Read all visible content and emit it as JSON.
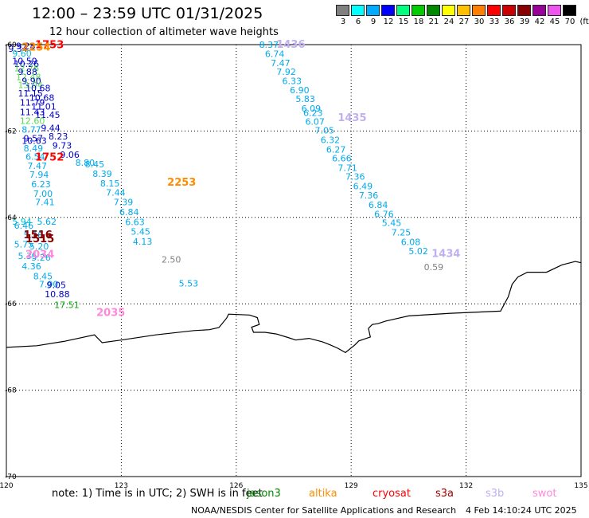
{
  "header": {
    "title": "12:00 – 23:59 UTC 01/31/2025",
    "subtitle": "12 hour collection of altimeter wave heights"
  },
  "colorbar": {
    "unit": "(ft)",
    "ticks": [
      "3",
      "6",
      "9",
      "12",
      "15",
      "18",
      "21",
      "24",
      "27",
      "30",
      "33",
      "36",
      "39",
      "42",
      "45",
      "70"
    ],
    "colors": [
      "#808080",
      "#00ffff",
      "#00aaff",
      "#0000ff",
      "#00ff7f",
      "#00cc00",
      "#008800",
      "#ffff00",
      "#ffc000",
      "#ff8000",
      "#ff0000",
      "#cc0000",
      "#880000",
      "#990099",
      "#ee55ee",
      "#000000"
    ]
  },
  "map": {
    "lon_range": [
      120,
      135
    ],
    "lat_range": [
      -60,
      -70
    ],
    "lon_labels": [
      "120",
      "123",
      "126",
      "129",
      "132",
      "135"
    ],
    "lat_labels": [
      "-60",
      "-62",
      "-64",
      "-66",
      "-68",
      "-70"
    ],
    "grid": "dotted"
  },
  "passes": [
    {
      "time": "1753",
      "color": "#ff0000",
      "lon": 120.75,
      "lat": -60.08
    },
    {
      "time": "2254",
      "color": "#ff8c00",
      "lon": 120.4,
      "lat": -60.14
    },
    {
      "time": "1752",
      "color": "#ff0000",
      "lon": 120.75,
      "lat": -62.68
    },
    {
      "time": "2253",
      "color": "#ff8c00",
      "lon": 124.2,
      "lat": -63.27
    },
    {
      "time": "1516",
      "color": "#880000",
      "lon": 120.45,
      "lat": -64.48
    },
    {
      "time": "1515",
      "color": "#880000",
      "lon": 120.5,
      "lat": -64.58
    },
    {
      "time": "2034",
      "color": "#ff88dd",
      "lon": 120.5,
      "lat": -64.94
    },
    {
      "time": "2035",
      "color": "#ff88dd",
      "lon": 122.35,
      "lat": -66.28
    },
    {
      "time": "1436",
      "color": "#c0b0f0",
      "lon": 127.05,
      "lat": -60.07
    },
    {
      "time": "1435",
      "color": "#c0b0f0",
      "lon": 128.65,
      "lat": -61.77
    },
    {
      "time": "1434",
      "color": "#c0b0f0",
      "lon": 131.1,
      "lat": -64.92
    }
  ],
  "values": [
    {
      "v": "9.28",
      "c": "#0000cc",
      "lon": 120.25,
      "lat": -60.1
    },
    {
      "v": "9.34",
      "c": "#0000cc",
      "lon": 120.05,
      "lat": -60.17
    },
    {
      "v": "9.60",
      "c": "#00c0d0",
      "lon": 120.15,
      "lat": -60.28
    },
    {
      "v": "10.59",
      "c": "#0000cc",
      "lon": 120.15,
      "lat": -60.45
    },
    {
      "v": "10.26",
      "c": "#0000cc",
      "lon": 120.2,
      "lat": -60.52
    },
    {
      "v": "12.76",
      "c": "#55dd55",
      "lon": 120.2,
      "lat": -60.62
    },
    {
      "v": "9.88",
      "c": "#0000cc",
      "lon": 120.3,
      "lat": -60.7
    },
    {
      "v": "12.48",
      "c": "#55dd55",
      "lon": 120.25,
      "lat": -60.82
    },
    {
      "v": "9.90",
      "c": "#0000cc",
      "lon": 120.4,
      "lat": -60.91
    },
    {
      "v": "13.04",
      "c": "#55dd55",
      "lon": 120.3,
      "lat": -61.01
    },
    {
      "v": "10.68",
      "c": "#0000cc",
      "lon": 120.5,
      "lat": -61.08
    },
    {
      "v": "11.15",
      "c": "#0000cc",
      "lon": 120.3,
      "lat": -61.2
    },
    {
      "v": "10.68",
      "c": "#0000cc",
      "lon": 120.6,
      "lat": -61.3
    },
    {
      "v": "11.79",
      "c": "#0000cc",
      "lon": 120.35,
      "lat": -61.41
    },
    {
      "v": "11.01",
      "c": "#0000cc",
      "lon": 120.65,
      "lat": -61.5
    },
    {
      "v": "11.43",
      "c": "#0000cc",
      "lon": 120.35,
      "lat": -61.63
    },
    {
      "v": "11.45",
      "c": "#0000cc",
      "lon": 120.75,
      "lat": -61.7
    },
    {
      "v": "12.60",
      "c": "#55dd55",
      "lon": 120.35,
      "lat": -61.84
    },
    {
      "v": "9.44",
      "c": "#0000cc",
      "lon": 120.9,
      "lat": -62.0
    },
    {
      "v": "8.77",
      "c": "#00aaee",
      "lon": 120.4,
      "lat": -62.04
    },
    {
      "v": "8.23",
      "c": "#0000cc",
      "lon": 121.1,
      "lat": -62.2
    },
    {
      "v": "9.57",
      "c": "#0000cc",
      "lon": 120.45,
      "lat": -62.24
    },
    {
      "v": "10.63",
      "c": "#0000cc",
      "lon": 120.4,
      "lat": -62.3
    },
    {
      "v": "9.73",
      "c": "#0000cc",
      "lon": 121.2,
      "lat": -62.41
    },
    {
      "v": "8.49",
      "c": "#00aaee",
      "lon": 120.45,
      "lat": -62.47
    },
    {
      "v": "9.06",
      "c": "#0000cc",
      "lon": 121.4,
      "lat": -62.62
    },
    {
      "v": "6.54",
      "c": "#00aaee",
      "lon": 120.5,
      "lat": -62.67
    },
    {
      "v": "8.80",
      "c": "#00aaee",
      "lon": 121.8,
      "lat": -62.8
    },
    {
      "v": "8.45",
      "c": "#00aaee",
      "lon": 122.05,
      "lat": -62.84
    },
    {
      "v": "7.47",
      "c": "#00aaee",
      "lon": 120.55,
      "lat": -62.88
    },
    {
      "v": "8.39",
      "c": "#00aaee",
      "lon": 122.25,
      "lat": -63.06
    },
    {
      "v": "7.94",
      "c": "#00aaee",
      "lon": 120.6,
      "lat": -63.08
    },
    {
      "v": "6.23",
      "c": "#00aaee",
      "lon": 120.65,
      "lat": -63.3
    },
    {
      "v": "8.15",
      "c": "#00aaee",
      "lon": 122.45,
      "lat": -63.28
    },
    {
      "v": "7.00",
      "c": "#00aaee",
      "lon": 120.7,
      "lat": -63.52
    },
    {
      "v": "7.44",
      "c": "#00aaee",
      "lon": 122.6,
      "lat": -63.5
    },
    {
      "v": "7.41",
      "c": "#00aaee",
      "lon": 120.75,
      "lat": -63.72
    },
    {
      "v": "7.39",
      "c": "#00aaee",
      "lon": 122.8,
      "lat": -63.72
    },
    {
      "v": "5.94",
      "c": "#00c0d0",
      "lon": 120.15,
      "lat": -64.17
    },
    {
      "v": "5.62",
      "c": "#00aaee",
      "lon": 120.8,
      "lat": -64.17
    },
    {
      "v": "6.46",
      "c": "#00aaee",
      "lon": 120.2,
      "lat": -64.26
    },
    {
      "v": "6.84",
      "c": "#00aaee",
      "lon": 122.95,
      "lat": -63.95
    },
    {
      "v": "5.28",
      "c": "#00aaee",
      "lon": 120.45,
      "lat": -64.48
    },
    {
      "v": "6.63",
      "c": "#00aaee",
      "lon": 123.1,
      "lat": -64.18
    },
    {
      "v": "5.75",
      "c": "#00aaee",
      "lon": 120.2,
      "lat": -64.7
    },
    {
      "v": "5.20",
      "c": "#00aaee",
      "lon": 120.6,
      "lat": -64.74
    },
    {
      "v": "5.45",
      "c": "#00aaee",
      "lon": 123.25,
      "lat": -64.4
    },
    {
      "v": "5.35",
      "c": "#00aaee",
      "lon": 120.3,
      "lat": -64.96
    },
    {
      "v": "5.26",
      "c": "#00aaee",
      "lon": 120.65,
      "lat": -65.0
    },
    {
      "v": "4.13",
      "c": "#00aaee",
      "lon": 123.3,
      "lat": -64.63
    },
    {
      "v": "4.36",
      "c": "#00aaee",
      "lon": 120.4,
      "lat": -65.2
    },
    {
      "v": "2.50",
      "c": "#808080",
      "lon": 124.05,
      "lat": -65.05
    },
    {
      "v": "8.45",
      "c": "#00aaee",
      "lon": 120.7,
      "lat": -65.43
    },
    {
      "v": "7.90",
      "c": "#00aaee",
      "lon": 120.85,
      "lat": -65.62
    },
    {
      "v": "9.05",
      "c": "#0000cc",
      "lon": 121.05,
      "lat": -65.64
    },
    {
      "v": "5.53",
      "c": "#00aaee",
      "lon": 124.5,
      "lat": -65.6
    },
    {
      "v": "10.88",
      "c": "#0000cc",
      "lon": 121.0,
      "lat": -65.85
    },
    {
      "v": "17.51",
      "c": "#00aa00",
      "lon": 121.25,
      "lat": -66.1
    },
    {
      "v": "8.37",
      "c": "#00aaee",
      "lon": 126.6,
      "lat": -60.07
    },
    {
      "v": "6.74",
      "c": "#00aaee",
      "lon": 126.75,
      "lat": -60.29
    },
    {
      "v": "7.47",
      "c": "#00aaee",
      "lon": 126.9,
      "lat": -60.5
    },
    {
      "v": "7.92",
      "c": "#00aaee",
      "lon": 127.05,
      "lat": -60.7
    },
    {
      "v": "6.33",
      "c": "#00aaee",
      "lon": 127.2,
      "lat": -60.91
    },
    {
      "v": "6.90",
      "c": "#00aaee",
      "lon": 127.4,
      "lat": -61.13
    },
    {
      "v": "5.83",
      "c": "#00aaee",
      "lon": 127.55,
      "lat": -61.33
    },
    {
      "v": "6.09",
      "c": "#00aaee",
      "lon": 127.7,
      "lat": -61.55
    },
    {
      "v": "6.23",
      "c": "#00aaee",
      "lon": 127.75,
      "lat": -61.65
    },
    {
      "v": "6.07",
      "c": "#00aaee",
      "lon": 127.8,
      "lat": -61.85
    },
    {
      "v": "7.05",
      "c": "#00aaee",
      "lon": 128.05,
      "lat": -62.06
    },
    {
      "v": "6.32",
      "c": "#00aaee",
      "lon": 128.2,
      "lat": -62.28
    },
    {
      "v": "6.27",
      "c": "#00aaee",
      "lon": 128.35,
      "lat": -62.5
    },
    {
      "v": "6.66",
      "c": "#00aaee",
      "lon": 128.5,
      "lat": -62.7
    },
    {
      "v": "7.71",
      "c": "#00aaee",
      "lon": 128.65,
      "lat": -62.92
    },
    {
      "v": "7.36",
      "c": "#00aaee",
      "lon": 128.85,
      "lat": -63.13
    },
    {
      "v": "6.49",
      "c": "#00aaee",
      "lon": 129.05,
      "lat": -63.35
    },
    {
      "v": "7.36",
      "c": "#00aaee",
      "lon": 129.2,
      "lat": -63.56
    },
    {
      "v": "6.84",
      "c": "#00aaee",
      "lon": 129.45,
      "lat": -63.78
    },
    {
      "v": "6.76",
      "c": "#00aaee",
      "lon": 129.6,
      "lat": -63.99
    },
    {
      "v": "5.45",
      "c": "#00aaee",
      "lon": 129.8,
      "lat": -64.2
    },
    {
      "v": "7.25",
      "c": "#00aaee",
      "lon": 130.05,
      "lat": -64.42
    },
    {
      "v": "6.08",
      "c": "#00aaee",
      "lon": 130.3,
      "lat": -64.64
    },
    {
      "v": "5.02",
      "c": "#00aaee",
      "lon": 130.5,
      "lat": -64.85
    },
    {
      "v": "0.59",
      "c": "#808080",
      "lon": 130.9,
      "lat": -65.22
    }
  ],
  "coast": [
    [
      120.0,
      -67.01
    ],
    [
      120.8,
      -66.97
    ],
    [
      121.5,
      -66.87
    ],
    [
      122.3,
      -66.72
    ],
    [
      122.5,
      -66.9
    ],
    [
      123.0,
      -66.84
    ],
    [
      123.9,
      -66.72
    ],
    [
      124.9,
      -66.62
    ],
    [
      125.3,
      -66.6
    ],
    [
      125.55,
      -66.55
    ],
    [
      125.75,
      -66.33
    ],
    [
      125.8,
      -66.24
    ],
    [
      126.35,
      -66.26
    ],
    [
      126.55,
      -66.32
    ],
    [
      126.6,
      -66.48
    ],
    [
      126.4,
      -66.54
    ],
    [
      126.45,
      -66.66
    ],
    [
      126.75,
      -66.66
    ],
    [
      127.05,
      -66.7
    ],
    [
      127.35,
      -66.78
    ],
    [
      127.55,
      -66.84
    ],
    [
      127.9,
      -66.8
    ],
    [
      128.25,
      -66.88
    ],
    [
      128.45,
      -66.95
    ],
    [
      128.65,
      -67.03
    ],
    [
      128.85,
      -67.13
    ],
    [
      129.1,
      -66.95
    ],
    [
      129.2,
      -66.86
    ],
    [
      129.5,
      -66.77
    ],
    [
      129.45,
      -66.57
    ],
    [
      129.55,
      -66.48
    ],
    [
      129.7,
      -66.46
    ],
    [
      129.9,
      -66.4
    ],
    [
      130.5,
      -66.28
    ],
    [
      131.6,
      -66.22
    ],
    [
      132.9,
      -66.17
    ],
    [
      133.1,
      -65.84
    ],
    [
      133.2,
      -65.55
    ],
    [
      133.35,
      -65.38
    ],
    [
      133.6,
      -65.27
    ],
    [
      134.1,
      -65.27
    ],
    [
      134.5,
      -65.1
    ],
    [
      134.85,
      -65.02
    ],
    [
      135.0,
      -65.05
    ]
  ],
  "footer": {
    "note": "note:  1) Time is in UTC; 2) SWH is in feet",
    "satellites": [
      {
        "name": "jason3",
        "color": "#008800"
      },
      {
        "name": "altika",
        "color": "#ff8c00"
      },
      {
        "name": "cryosat",
        "color": "#ff0000"
      },
      {
        "name": "s3a",
        "color": "#aa0000"
      },
      {
        "name": "s3b",
        "color": "#c0b0f0"
      },
      {
        "name": "swot",
        "color": "#ff88dd"
      }
    ],
    "credit": "NOAA/NESDIS Center for Satellite Applications and Research",
    "timestamp": "4 Feb 14:10:24 UTC 2025"
  }
}
